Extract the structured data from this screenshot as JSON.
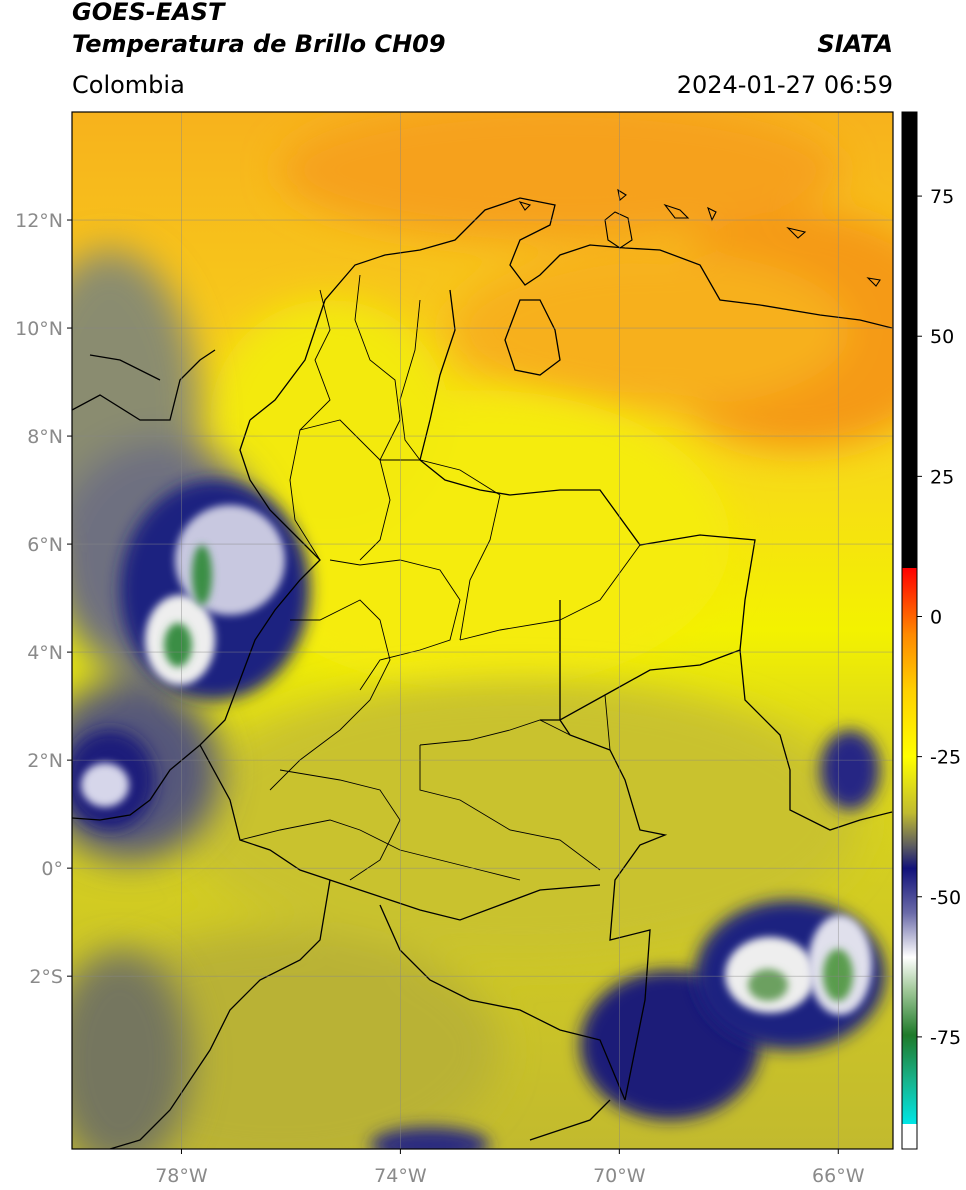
{
  "header": {
    "satellite": "GOES-EAST",
    "product": "Temperatura de Brillo CH09",
    "region": "Colombia",
    "organization": "SIATA",
    "timestamp": "2024-01-27 06:59"
  },
  "map": {
    "lon_range": [
      -80,
      -65
    ],
    "lat_range": [
      -5.2,
      14
    ],
    "lat_ticks": [
      {
        "value": 12,
        "label": "12°N"
      },
      {
        "value": 10,
        "label": "10°N"
      },
      {
        "value": 8,
        "label": "8°N"
      },
      {
        "value": 6,
        "label": "6°N"
      },
      {
        "value": 4,
        "label": "4°N"
      },
      {
        "value": 2,
        "label": "2°N"
      },
      {
        "value": 0,
        "label": "0°"
      },
      {
        "value": -2,
        "label": "2°S"
      }
    ],
    "lon_ticks": [
      {
        "value": -78,
        "label": "78°W"
      },
      {
        "value": -74,
        "label": "74°W"
      },
      {
        "value": -70,
        "label": "70°W"
      },
      {
        "value": -66,
        "label": "66°W"
      }
    ],
    "grid": true,
    "colors": {
      "warm_orange": "#f7a41b",
      "yellow": "#f4f000",
      "olive": "#c9c22c",
      "cloud_navy": "#1c1e7a",
      "cloud_white": "#f2f2f2",
      "cloud_green": "#5a9c4e"
    }
  },
  "colorbar": {
    "range": [
      -95,
      90
    ],
    "ticks": [
      {
        "value": 75,
        "label": "75"
      },
      {
        "value": 50,
        "label": "50"
      },
      {
        "value": 25,
        "label": "25"
      },
      {
        "value": 0,
        "label": "0"
      },
      {
        "value": -25,
        "label": "-25"
      },
      {
        "value": -50,
        "label": "-50"
      },
      {
        "value": -75,
        "label": "-75"
      }
    ]
  }
}
